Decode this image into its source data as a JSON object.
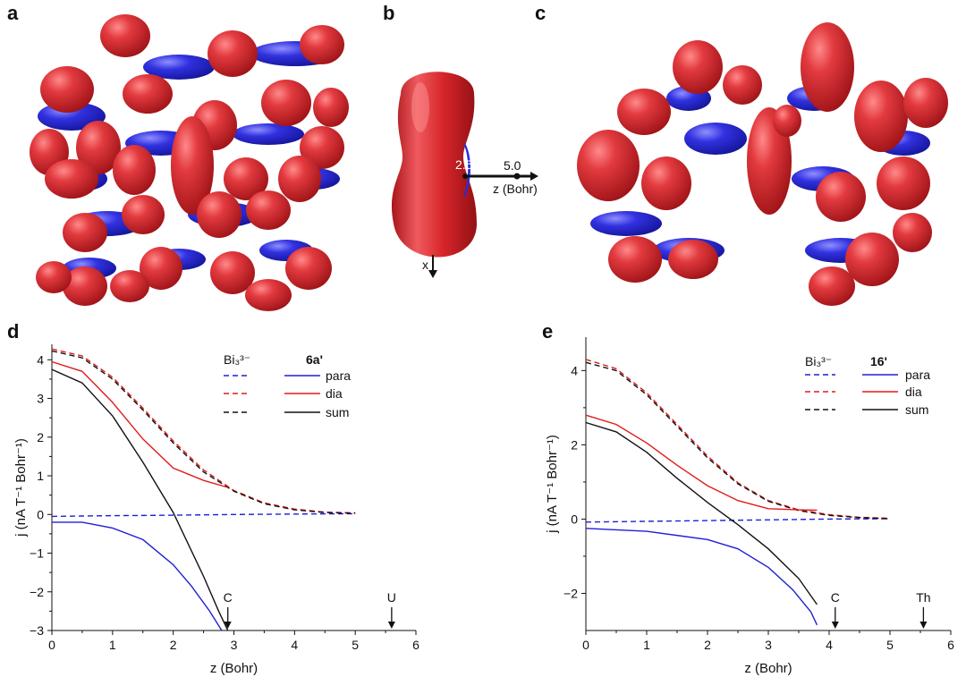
{
  "panels": {
    "a": {
      "label": "a"
    },
    "b": {
      "label": "b",
      "axis_x": "x",
      "axis_z": "z (Bohr)",
      "mark1": "2.5",
      "mark2": "5.0"
    },
    "c": {
      "label": "c"
    },
    "d": {
      "label": "d"
    },
    "e": {
      "label": "e"
    }
  },
  "colors": {
    "para": "#1f1fd6",
    "dia": "#e01b1b",
    "sum": "#111111",
    "iso_red": "#d8262b",
    "iso_blue": "#2b2bd9"
  },
  "chart_data": [
    {
      "id": "d",
      "type": "line",
      "xlabel": "z (Bohr)",
      "ylabel": "j (nA T⁻¹ Bohr⁻¹)",
      "xlim": [
        0,
        6
      ],
      "ylim": [
        -3,
        4.4
      ],
      "xticks": [
        "0",
        "1",
        "2",
        "3",
        "4",
        "5",
        "6"
      ],
      "yticks": [
        "−3",
        "−2",
        "−1",
        "0",
        "1",
        "2",
        "3",
        "4"
      ],
      "legend": {
        "placement": "top-right",
        "group1": "Bi₃³⁻",
        "group2": "6a'",
        "entries": [
          "para",
          "dia",
          "sum"
        ]
      },
      "annotations": [
        {
          "text": "C",
          "x": 2.9
        },
        {
          "text": "U",
          "x": 5.6
        }
      ],
      "series": [
        {
          "name": "para",
          "group": "Bi₃³⁻",
          "style": "dashed",
          "color": "#1f1fd6",
          "x": [
            0,
            0.5,
            1,
            2,
            3,
            4,
            5
          ],
          "y": [
            -0.05,
            -0.04,
            -0.03,
            -0.02,
            0,
            0.01,
            0.02
          ]
        },
        {
          "name": "dia",
          "group": "Bi₃³⁻",
          "style": "dashed",
          "color": "#e01b1b",
          "x": [
            0,
            0.5,
            1,
            1.5,
            2,
            2.5,
            3,
            3.5,
            4,
            4.5,
            5
          ],
          "y": [
            4.28,
            4.1,
            3.55,
            2.75,
            1.9,
            1.15,
            0.62,
            0.3,
            0.14,
            0.06,
            0.04
          ]
        },
        {
          "name": "sum",
          "group": "Bi₃³⁻",
          "style": "dashed",
          "color": "#111111",
          "x": [
            0,
            0.5,
            1,
            1.5,
            2,
            2.5,
            3,
            3.5,
            4,
            4.5,
            5
          ],
          "y": [
            4.23,
            4.05,
            3.5,
            2.7,
            1.85,
            1.1,
            0.6,
            0.28,
            0.12,
            0.05,
            0.03
          ]
        },
        {
          "name": "para",
          "group": "6a'",
          "style": "solid",
          "color": "#1f1fd6",
          "x": [
            0,
            0.5,
            1,
            1.5,
            2,
            2.3,
            2.6,
            2.8
          ],
          "y": [
            -0.2,
            -0.2,
            -0.35,
            -0.65,
            -1.3,
            -1.85,
            -2.5,
            -3.0
          ]
        },
        {
          "name": "dia",
          "group": "6a'",
          "style": "solid",
          "color": "#e01b1b",
          "x": [
            0,
            0.5,
            1,
            1.5,
            2,
            2.5,
            2.9
          ],
          "y": [
            3.95,
            3.7,
            2.9,
            1.95,
            1.2,
            0.88,
            0.7
          ]
        },
        {
          "name": "sum",
          "group": "6a'",
          "style": "solid",
          "color": "#111111",
          "x": [
            0,
            0.5,
            1,
            1.5,
            2,
            2.5,
            2.75,
            2.9
          ],
          "y": [
            3.75,
            3.4,
            2.55,
            1.35,
            0.05,
            -1.6,
            -2.5,
            -3.0
          ]
        }
      ]
    },
    {
      "id": "e",
      "type": "line",
      "xlabel": "z (Bohr)",
      "ylabel": "j (nA T⁻¹ Bohr⁻¹)",
      "xlim": [
        0,
        6
      ],
      "ylim": [
        -3,
        4.9
      ],
      "xticks": [
        "0",
        "1",
        "2",
        "3",
        "4",
        "5",
        "6"
      ],
      "yticks": [
        "−2",
        "0",
        "2",
        "4"
      ],
      "legend": {
        "placement": "top-right",
        "group1": "Bi₃³⁻",
        "group2": "16'",
        "entries": [
          "para",
          "dia",
          "sum"
        ]
      },
      "annotations": [
        {
          "text": "C",
          "x": 4.1
        },
        {
          "text": "Th",
          "x": 5.55
        }
      ],
      "series": [
        {
          "name": "para",
          "group": "Bi₃³⁻",
          "style": "dashed",
          "color": "#1f1fd6",
          "x": [
            0,
            1,
            2,
            3,
            4,
            5
          ],
          "y": [
            -0.08,
            -0.06,
            -0.04,
            -0.02,
            0,
            0.01
          ]
        },
        {
          "name": "dia",
          "group": "Bi₃³⁻",
          "style": "dashed",
          "color": "#e01b1b",
          "x": [
            0,
            0.5,
            1,
            1.5,
            2,
            2.5,
            3,
            3.5,
            4,
            4.5,
            5
          ],
          "y": [
            4.3,
            4.05,
            3.4,
            2.55,
            1.7,
            0.98,
            0.5,
            0.25,
            0.12,
            0.05,
            0.02
          ]
        },
        {
          "name": "sum",
          "group": "Bi₃³⁻",
          "style": "dashed",
          "color": "#111111",
          "x": [
            0,
            0.5,
            1,
            1.5,
            2,
            2.5,
            3,
            3.5,
            4,
            4.5,
            5
          ],
          "y": [
            4.22,
            4.0,
            3.35,
            2.5,
            1.65,
            0.95,
            0.48,
            0.23,
            0.1,
            0.04,
            0.01
          ]
        },
        {
          "name": "para",
          "group": "16'",
          "style": "solid",
          "color": "#1f1fd6",
          "x": [
            0,
            1,
            2,
            2.5,
            3,
            3.4,
            3.7,
            3.8
          ],
          "y": [
            -0.25,
            -0.33,
            -0.55,
            -0.8,
            -1.3,
            -1.9,
            -2.5,
            -2.85
          ]
        },
        {
          "name": "dia",
          "group": "16'",
          "style": "solid",
          "color": "#e01b1b",
          "x": [
            0,
            0.5,
            1,
            1.5,
            2,
            2.5,
            3,
            3.5,
            3.8
          ],
          "y": [
            2.8,
            2.55,
            2.05,
            1.45,
            0.9,
            0.5,
            0.28,
            0.25,
            0.24
          ]
        },
        {
          "name": "sum",
          "group": "16'",
          "style": "solid",
          "color": "#111111",
          "x": [
            0,
            0.5,
            1,
            1.5,
            2,
            2.5,
            3,
            3.5,
            3.8
          ],
          "y": [
            2.6,
            2.35,
            1.8,
            1.1,
            0.45,
            -0.15,
            -0.8,
            -1.6,
            -2.3
          ]
        }
      ]
    }
  ]
}
